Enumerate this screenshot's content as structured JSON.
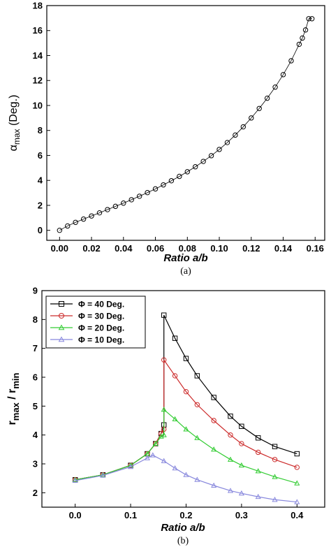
{
  "chart_data": [
    {
      "type": "scatter",
      "panel_label": "(a)",
      "xlabel": "Ratio a/b",
      "ylabel_base": "α",
      "ylabel_sub": "max",
      "ylabel_unit": " (Deg.)",
      "xlim": [
        -0.008,
        0.166
      ],
      "ylim": [
        -0.8,
        18
      ],
      "xticks": [
        "0.00",
        "0.02",
        "0.04",
        "0.06",
        "0.08",
        "0.10",
        "0.12",
        "0.14",
        "0.16"
      ],
      "yticks": [
        "0",
        "2",
        "4",
        "6",
        "8",
        "10",
        "12",
        "14",
        "16",
        "18"
      ],
      "color": "#000000",
      "marker": "circle",
      "x": [
        0.0,
        0.005,
        0.01,
        0.015,
        0.02,
        0.025,
        0.03,
        0.035,
        0.04,
        0.045,
        0.05,
        0.055,
        0.06,
        0.065,
        0.07,
        0.075,
        0.08,
        0.085,
        0.09,
        0.095,
        0.1,
        0.105,
        0.11,
        0.115,
        0.12,
        0.125,
        0.13,
        0.135,
        0.14,
        0.145,
        0.15,
        0.152,
        0.154,
        0.156,
        0.158
      ],
      "y": [
        0.0,
        0.35,
        0.64,
        0.9,
        1.15,
        1.4,
        1.66,
        1.92,
        2.18,
        2.45,
        2.73,
        3.02,
        3.32,
        3.64,
        3.97,
        4.32,
        4.69,
        5.09,
        5.52,
        5.98,
        6.48,
        7.03,
        7.63,
        8.29,
        9.0,
        9.76,
        10.58,
        11.47,
        12.47,
        13.58,
        14.9,
        15.4,
        16.05,
        16.95,
        16.95
      ]
    },
    {
      "type": "scatter",
      "panel_label": "(b)",
      "xlabel": "Ratio a/b",
      "ylabel_base": "r",
      "ylabel_sub1": "max",
      "ylabel_mid": " / r",
      "ylabel_sub2": "min",
      "xlim": [
        -0.06,
        0.45
      ],
      "ylim": [
        1.5,
        9
      ],
      "xticks": [
        "0.0",
        "0.1",
        "0.2",
        "0.3",
        "0.4"
      ],
      "yticks": [
        "2",
        "3",
        "4",
        "5",
        "6",
        "7",
        "8",
        "9"
      ],
      "legend_position": "top-left",
      "series": [
        {
          "name": "Φ = 40 Deg.",
          "color": "#000000",
          "marker": "square",
          "x": [
            0.0,
            0.05,
            0.1,
            0.13,
            0.145,
            0.155,
            0.16,
            0.16,
            0.18,
            0.2,
            0.22,
            0.25,
            0.28,
            0.3,
            0.33,
            0.36,
            0.4
          ],
          "y": [
            2.45,
            2.62,
            2.95,
            3.35,
            3.7,
            4.05,
            4.35,
            8.15,
            7.35,
            6.65,
            6.05,
            5.3,
            4.65,
            4.3,
            3.9,
            3.6,
            3.35
          ]
        },
        {
          "name": "Φ = 30 Deg.",
          "color": "#cc2a2a",
          "marker": "circle",
          "x": [
            0.0,
            0.05,
            0.1,
            0.13,
            0.145,
            0.155,
            0.16,
            0.16,
            0.18,
            0.2,
            0.22,
            0.25,
            0.28,
            0.3,
            0.33,
            0.36,
            0.4
          ],
          "y": [
            2.45,
            2.62,
            2.95,
            3.35,
            3.7,
            4.05,
            4.2,
            6.6,
            6.05,
            5.5,
            5.05,
            4.5,
            4.0,
            3.7,
            3.4,
            3.15,
            2.88
          ]
        },
        {
          "name": "Φ = 20 Deg.",
          "color": "#33cc33",
          "marker": "triangle",
          "x": [
            0.0,
            0.05,
            0.1,
            0.13,
            0.145,
            0.155,
            0.16,
            0.16,
            0.18,
            0.2,
            0.22,
            0.25,
            0.28,
            0.3,
            0.33,
            0.36,
            0.4
          ],
          "y": [
            2.45,
            2.62,
            2.95,
            3.35,
            3.7,
            3.95,
            4.0,
            4.88,
            4.55,
            4.2,
            3.9,
            3.5,
            3.15,
            2.95,
            2.75,
            2.55,
            2.33
          ]
        },
        {
          "name": "Φ = 10 Deg.",
          "color": "#8888dd",
          "marker": "triangle",
          "x": [
            0.0,
            0.05,
            0.1,
            0.13,
            0.14,
            0.16,
            0.18,
            0.2,
            0.22,
            0.25,
            0.28,
            0.3,
            0.33,
            0.36,
            0.4
          ],
          "y": [
            2.42,
            2.6,
            2.9,
            3.2,
            3.3,
            3.1,
            2.85,
            2.62,
            2.45,
            2.25,
            2.07,
            1.98,
            1.86,
            1.76,
            1.68
          ]
        }
      ]
    }
  ]
}
